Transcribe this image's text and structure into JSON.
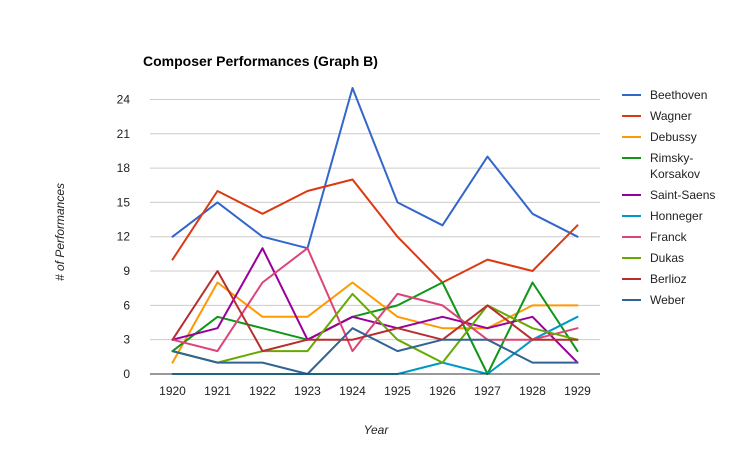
{
  "chart_data": {
    "type": "line",
    "title": "Composer Performances (Graph B)",
    "xlabel": "Year",
    "ylabel": "# of Performances",
    "x": [
      "1920",
      "1921",
      "1922",
      "1923",
      "1924",
      "1925",
      "1926",
      "1927",
      "1928",
      "1929"
    ],
    "ylim": [
      0,
      25
    ],
    "yticks": [
      0,
      3,
      6,
      9,
      12,
      15,
      18,
      21,
      24
    ],
    "grid": true,
    "legend_position": "right",
    "series": [
      {
        "name": "Beethoven",
        "color": "#3366cc",
        "values": [
          12,
          15,
          12,
          11,
          25,
          15,
          13,
          19,
          14,
          12
        ]
      },
      {
        "name": "Wagner",
        "color": "#dc3912",
        "values": [
          10,
          16,
          14,
          16,
          17,
          12,
          8,
          10,
          9,
          13
        ]
      },
      {
        "name": "Debussy",
        "color": "#ff9900",
        "values": [
          1,
          8,
          5,
          5,
          8,
          5,
          4,
          4,
          6,
          6
        ]
      },
      {
        "name": "Rimsky-Korsakov",
        "label_lines": [
          "Rimsky-",
          "Korsakov"
        ],
        "color": "#109618",
        "values": [
          2,
          5,
          4,
          3,
          5,
          6,
          8,
          0,
          8,
          2
        ]
      },
      {
        "name": "Saint-Saens",
        "color": "#990099",
        "values": [
          3,
          4,
          11,
          3,
          5,
          4,
          5,
          4,
          5,
          1
        ]
      },
      {
        "name": "Honneger",
        "color": "#0099c6",
        "values": [
          0,
          0,
          0,
          0,
          0,
          0,
          1,
          0,
          3,
          5
        ]
      },
      {
        "name": "Franck",
        "color": "#dd4477",
        "values": [
          3,
          2,
          8,
          11,
          2,
          7,
          6,
          3,
          3,
          4
        ]
      },
      {
        "name": "Dukas",
        "color": "#66aa00",
        "values": [
          2,
          1,
          2,
          2,
          7,
          3,
          1,
          6,
          4,
          3
        ]
      },
      {
        "name": "Berlioz",
        "color": "#b82e2e",
        "values": [
          3,
          9,
          2,
          3,
          3,
          4,
          3,
          6,
          3,
          3
        ]
      },
      {
        "name": "Weber",
        "color": "#316395",
        "values": [
          2,
          1,
          1,
          0,
          4,
          2,
          3,
          3,
          1,
          1
        ]
      }
    ]
  }
}
